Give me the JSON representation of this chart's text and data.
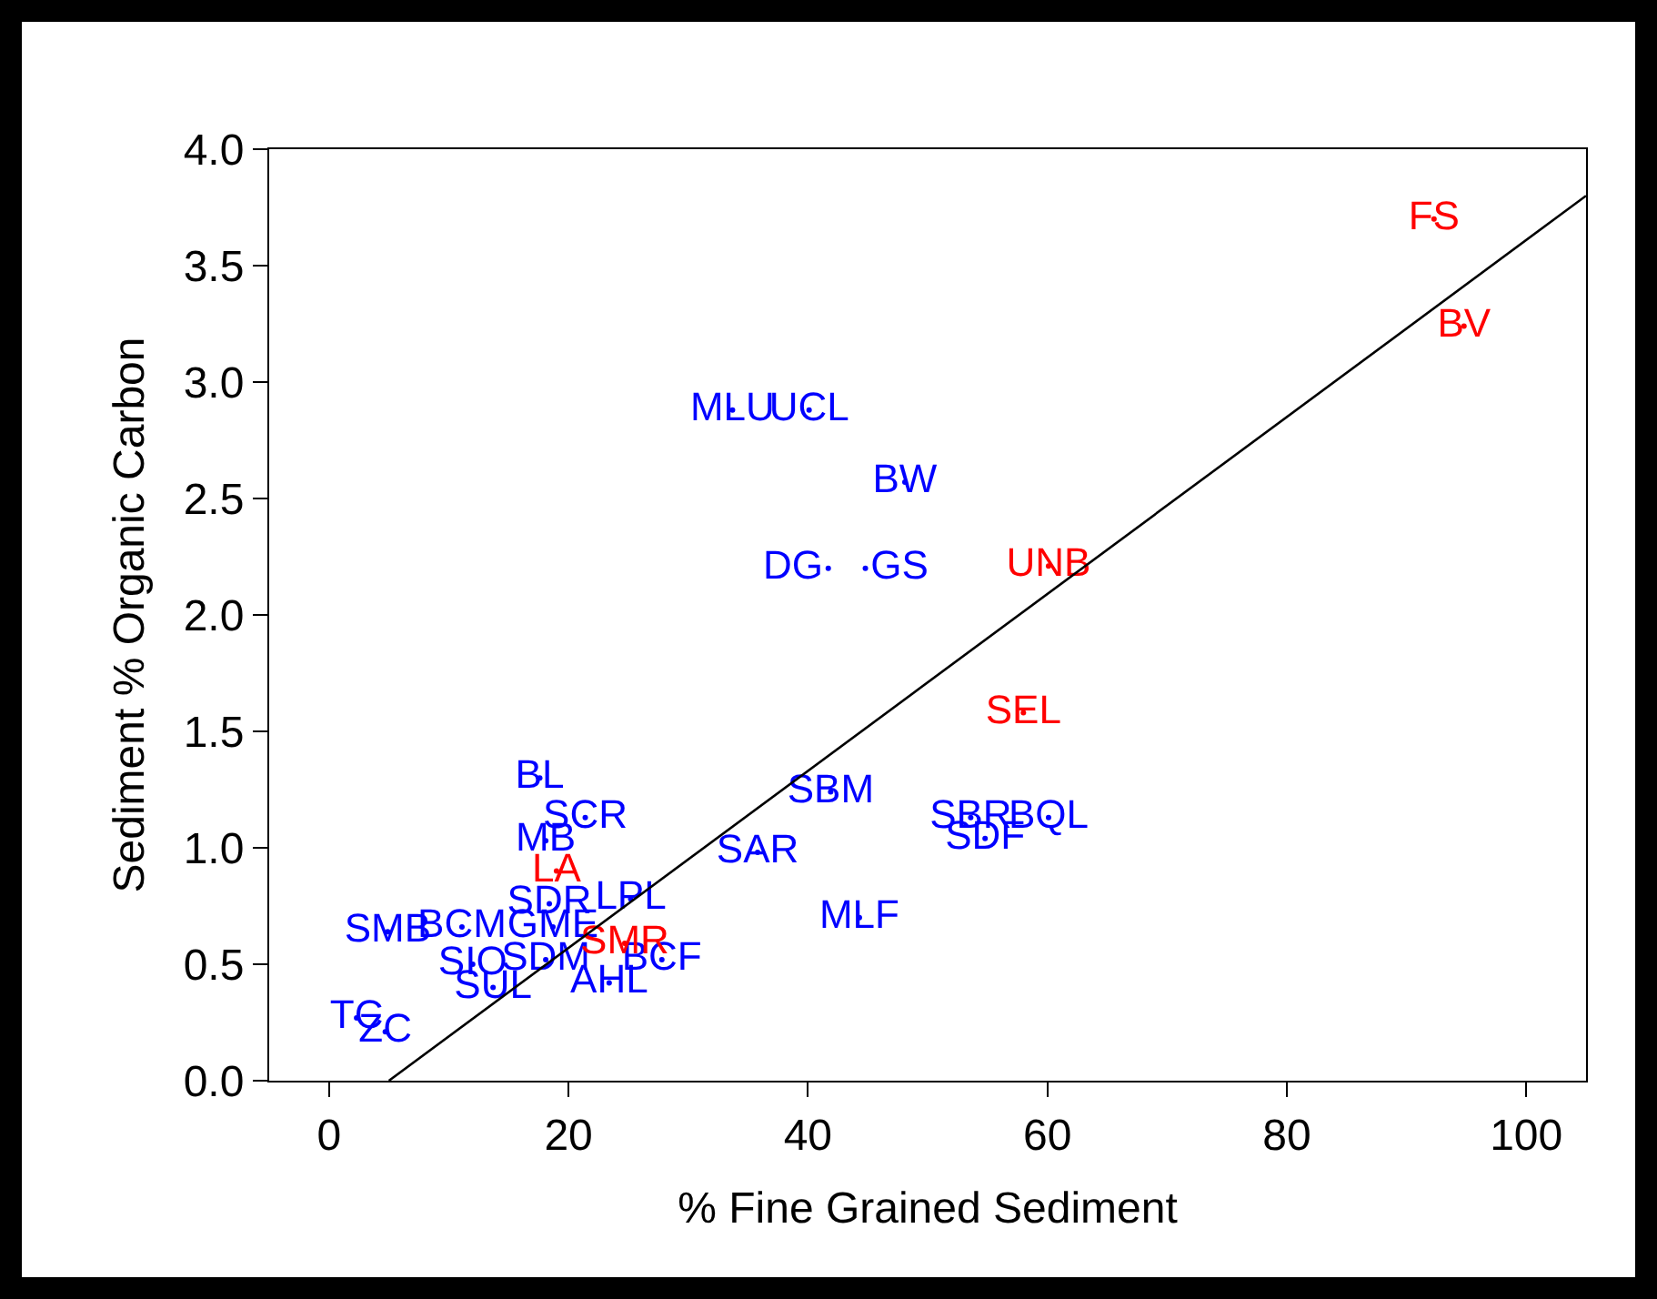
{
  "chart_data": {
    "type": "scatter",
    "xlabel": "% Fine Grained Sediment",
    "ylabel": "Sediment % Organic Carbon",
    "xlim": [
      -5,
      105
    ],
    "ylim": [
      0,
      4
    ],
    "xticks": [
      0,
      20,
      40,
      60,
      80,
      100
    ],
    "yticks": [
      {
        "value": 0,
        "label": "0.0"
      },
      {
        "value": 0.5,
        "label": "0.5"
      },
      {
        "value": 1,
        "label": "1.0"
      },
      {
        "value": 1.5,
        "label": "1.5"
      },
      {
        "value": 2,
        "label": "2.0"
      },
      {
        "value": 2.5,
        "label": "2.5"
      },
      {
        "value": 3,
        "label": "3.0"
      },
      {
        "value": 3.5,
        "label": "3.5"
      },
      {
        "value": 4,
        "label": "4.0"
      }
    ],
    "grid": false,
    "series": [
      {
        "color": "#0000ff",
        "marker": "circle",
        "x": [
          33.7,
          40.1,
          48.1,
          41.7,
          44.8,
          41.9,
          53.6,
          60.1,
          54.8,
          35.8,
          44.3,
          17.6,
          21.4,
          18.1,
          25.2,
          18.4,
          4.9,
          11.1,
          18.7,
          12.0,
          13.7,
          18.1,
          23.4,
          27.8,
          2.3,
          4.7
        ],
        "values": [
          2.88,
          2.88,
          2.57,
          2.2,
          2.2,
          1.24,
          1.13,
          1.13,
          1.04,
          0.98,
          0.7,
          1.3,
          1.13,
          1.03,
          0.78,
          0.76,
          0.64,
          0.66,
          0.66,
          0.5,
          0.4,
          0.52,
          0.42,
          0.52,
          0.27,
          0.21
        ],
        "value_labels": [
          "MLU",
          "UCL",
          "BW",
          "DG",
          "GS",
          "SBM",
          "SBR",
          "BQL",
          "SDF",
          "SAR",
          "MLF",
          "BL",
          "SCR",
          "MB",
          "LPL",
          "SDR",
          "SMB",
          "BCM",
          "GME",
          "SIO",
          "SUL",
          "SDM",
          "AHL",
          "BCF",
          "TC",
          "ZC"
        ]
      },
      {
        "color": "#ff0000",
        "marker": "circle",
        "x": [
          92.3,
          94.8,
          60.1,
          58.0,
          19.0,
          24.7
        ],
        "values": [
          3.7,
          3.24,
          2.21,
          1.58,
          0.9,
          0.59
        ],
        "value_labels": [
          "FS",
          "BV",
          "UNB",
          "SEL",
          "LA",
          "SMR"
        ]
      },
      {
        "type": "line",
        "color": "#000000",
        "x": [
          5,
          105
        ],
        "values": [
          0,
          3.8
        ]
      }
    ]
  }
}
